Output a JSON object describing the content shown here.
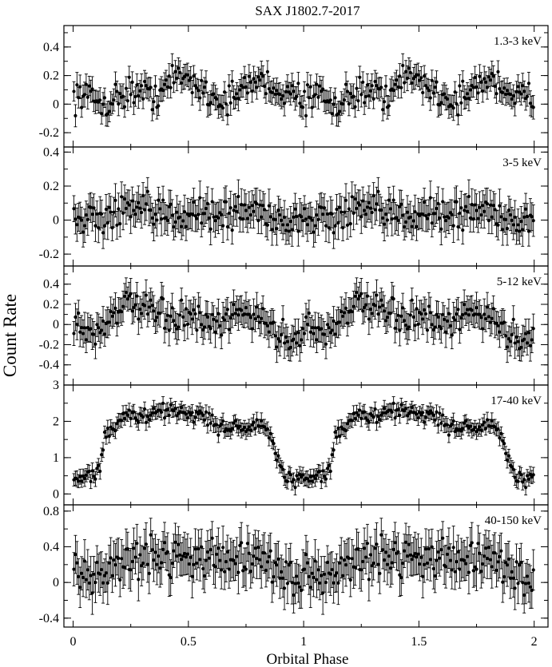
{
  "chart_data": {
    "type": "scatter",
    "title": "SAX J1802.7-2017",
    "xlabel": "Orbital Phase",
    "ylabel": "Count Rate",
    "xlim": [
      -0.04,
      2.06
    ],
    "xticks": [
      0,
      0.5,
      1,
      1.5,
      2
    ],
    "xtick_labels": [
      "0",
      "0.5",
      "1",
      "1.5",
      "2"
    ],
    "grid": false,
    "legend": "none",
    "marker_color": "#000000",
    "panels": [
      {
        "label": "1.3-3 keV",
        "ylim": [
          -0.3,
          0.55
        ],
        "yticks": [
          -0.2,
          0,
          0.2,
          0.4
        ],
        "ytick_labels": [
          "-0.2",
          "0",
          "0.2",
          "0.4"
        ],
        "phase": [
          0.0,
          0.05,
          0.1,
          0.15,
          0.2,
          0.25,
          0.3,
          0.35,
          0.4,
          0.45,
          0.5,
          0.55,
          0.6,
          0.65,
          0.7,
          0.75,
          0.8,
          0.85,
          0.9,
          0.95,
          1.0
        ],
        "rate": [
          0.05,
          0.08,
          0.02,
          0.0,
          0.06,
          0.1,
          0.08,
          0.06,
          0.12,
          0.2,
          0.18,
          0.12,
          0.06,
          0.02,
          0.05,
          0.12,
          0.18,
          0.14,
          0.08,
          0.04,
          0.06
        ],
        "error": 0.08,
        "scatter": 0.07
      },
      {
        "label": "3-5 keV",
        "ylim": [
          -0.27,
          0.43
        ],
        "yticks": [
          -0.2,
          0,
          0.2,
          0.4
        ],
        "ytick_labels": [
          "-0.2",
          "0",
          "0.2",
          "0.4"
        ],
        "phase": [
          0.0,
          0.05,
          0.1,
          0.15,
          0.2,
          0.25,
          0.3,
          0.35,
          0.4,
          0.45,
          0.5,
          0.55,
          0.6,
          0.65,
          0.7,
          0.75,
          0.8,
          0.85,
          0.9,
          0.95,
          1.0
        ],
        "rate": [
          0.05,
          0.03,
          0.0,
          0.02,
          0.04,
          0.06,
          0.05,
          0.03,
          0.02,
          0.04,
          0.05,
          0.06,
          0.04,
          0.02,
          0.04,
          0.06,
          0.05,
          0.04,
          0.0,
          -0.02,
          0.04
        ],
        "error": 0.09,
        "scatter": 0.07
      },
      {
        "label": "5-12 keV",
        "ylim": [
          -0.6,
          0.58
        ],
        "yticks": [
          -0.4,
          -0.2,
          0,
          0.2,
          0.4
        ],
        "ytick_labels": [
          "-0.4",
          "-0.2",
          "0",
          "0.2",
          "0.4"
        ],
        "phase": [
          0.0,
          0.05,
          0.1,
          0.15,
          0.2,
          0.25,
          0.3,
          0.35,
          0.4,
          0.45,
          0.5,
          0.55,
          0.6,
          0.65,
          0.7,
          0.75,
          0.8,
          0.85,
          0.9,
          0.95,
          1.0
        ],
        "rate": [
          0.02,
          -0.05,
          -0.1,
          0.05,
          0.18,
          0.2,
          0.15,
          0.1,
          0.08,
          0.06,
          0.08,
          0.04,
          -0.05,
          0.02,
          0.1,
          0.12,
          0.1,
          -0.02,
          -0.12,
          -0.15,
          -0.05
        ],
        "error": 0.14,
        "scatter": 0.1
      },
      {
        "label": "17-40 keV",
        "ylim": [
          -0.3,
          3.0
        ],
        "yticks": [
          0,
          1,
          2,
          3
        ],
        "ytick_labels": [
          "0",
          "1",
          "2",
          "3"
        ],
        "phase": [
          0.0,
          0.05,
          0.1,
          0.12,
          0.14,
          0.2,
          0.25,
          0.3,
          0.35,
          0.4,
          0.45,
          0.5,
          0.55,
          0.6,
          0.65,
          0.7,
          0.75,
          0.8,
          0.85,
          0.88,
          0.92,
          0.96,
          1.0
        ],
        "rate": [
          0.4,
          0.45,
          0.6,
          0.9,
          1.6,
          2.0,
          2.2,
          2.1,
          2.2,
          2.3,
          2.3,
          2.2,
          2.2,
          2.0,
          1.8,
          1.9,
          1.8,
          1.9,
          1.7,
          1.1,
          0.45,
          0.35,
          0.4
        ],
        "error": 0.2,
        "scatter": 0.15
      },
      {
        "label": "40-150 keV",
        "ylim": [
          -0.5,
          0.87
        ],
        "yticks": [
          -0.4,
          0,
          0.4,
          0.8
        ],
        "ytick_labels": [
          "-0.4",
          "0",
          "0.4",
          "0.8"
        ],
        "phase": [
          0.0,
          0.05,
          0.1,
          0.15,
          0.2,
          0.25,
          0.3,
          0.35,
          0.4,
          0.45,
          0.5,
          0.55,
          0.6,
          0.65,
          0.7,
          0.75,
          0.8,
          0.85,
          0.9,
          0.95,
          1.0
        ],
        "rate": [
          0.05,
          0.08,
          0.1,
          0.15,
          0.2,
          0.25,
          0.3,
          0.28,
          0.3,
          0.32,
          0.3,
          0.28,
          0.25,
          0.28,
          0.3,
          0.25,
          0.22,
          0.2,
          0.12,
          0.05,
          0.05
        ],
        "error": 0.22,
        "scatter": 0.15
      }
    ]
  }
}
